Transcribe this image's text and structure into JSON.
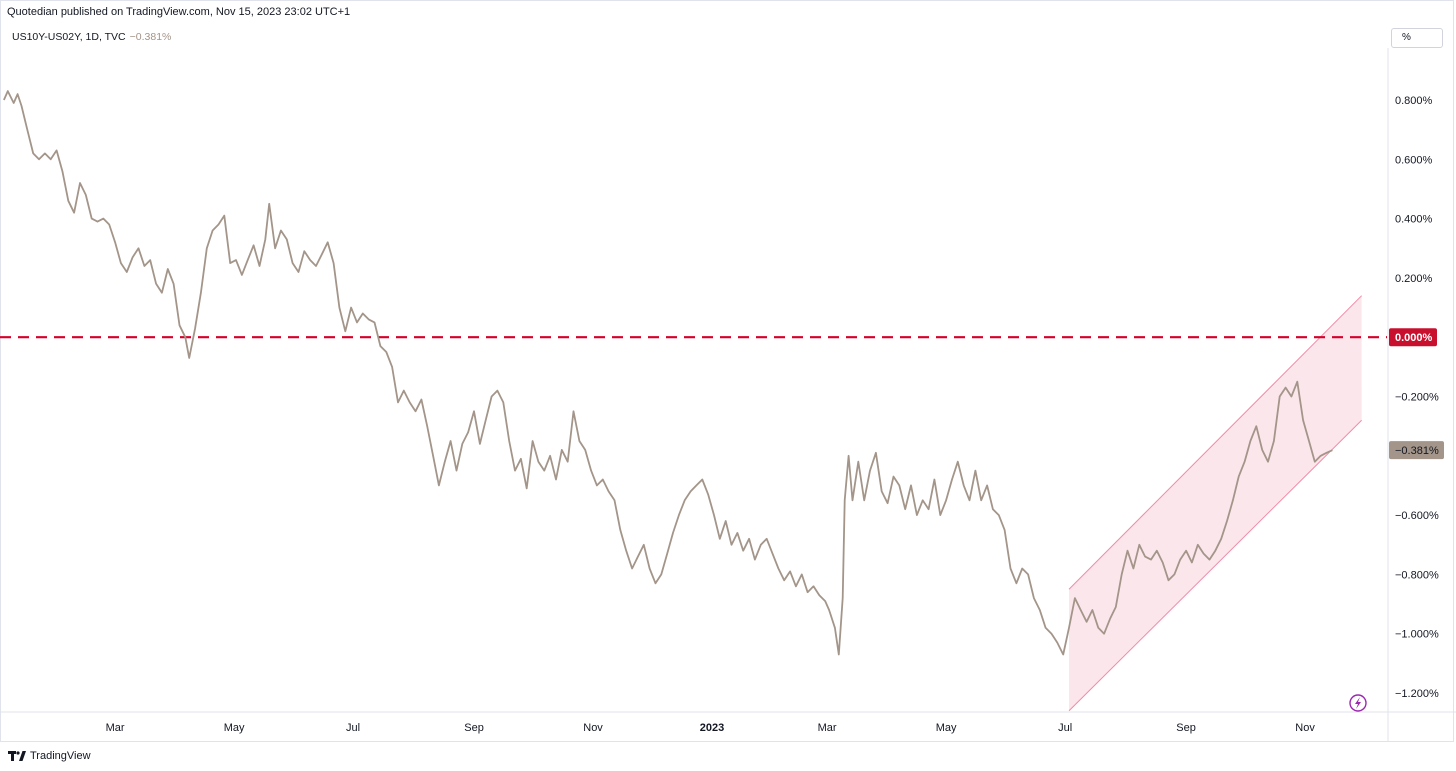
{
  "header": {
    "publisher": "Quotedian published on TradingView.com, Nov 15, 2023 23:02 UTC+1",
    "symbol": "US10Y-US02Y, 1D, TVC",
    "last_value": "−0.381%",
    "scale_button": "%"
  },
  "footer": {
    "brand": "TradingView"
  },
  "colors": {
    "line": "#a39589",
    "zero_line": "#d6002a",
    "zero_label_bg": "#c8102e",
    "channel_fill": "#fbe6ec",
    "channel_stroke": "#f28ba8",
    "last_label_bg": "#a39589",
    "lightning": "#9c27b0"
  },
  "chart_data": {
    "type": "line",
    "title": "",
    "xlabel": "",
    "ylabel": "%",
    "ylim": [
      -1.25,
      0.9
    ],
    "x_ticks": [
      {
        "label": "Mar",
        "date": "2022-03-01",
        "bold": false
      },
      {
        "label": "May",
        "date": "2022-05-01",
        "bold": false
      },
      {
        "label": "Jul",
        "date": "2022-07-01",
        "bold": false
      },
      {
        "label": "Sep",
        "date": "2022-09-01",
        "bold": false
      },
      {
        "label": "Nov",
        "date": "2022-11-01",
        "bold": false
      },
      {
        "label": "2023",
        "date": "2023-01-01",
        "bold": true
      },
      {
        "label": "Mar",
        "date": "2023-03-01",
        "bold": false
      },
      {
        "label": "May",
        "date": "2023-05-01",
        "bold": false
      },
      {
        "label": "Jul",
        "date": "2023-07-01",
        "bold": false
      },
      {
        "label": "Sep",
        "date": "2023-09-01",
        "bold": false
      },
      {
        "label": "Nov",
        "date": "2023-11-01",
        "bold": false
      }
    ],
    "y_ticks": [
      {
        "label": "0.800%",
        "value": 0.8
      },
      {
        "label": "0.600%",
        "value": 0.6
      },
      {
        "label": "0.400%",
        "value": 0.4
      },
      {
        "label": "0.200%",
        "value": 0.2
      },
      {
        "label": "−0.200%",
        "value": -0.2
      },
      {
        "label": "−0.600%",
        "value": -0.6
      },
      {
        "label": "−0.800%",
        "value": -0.8
      },
      {
        "label": "−1.000%",
        "value": -1.0
      },
      {
        "label": "−1.200%",
        "value": -1.2
      }
    ],
    "zero_label": "0.000%",
    "last_label": "−0.381%",
    "last_value": -0.381,
    "series": [
      {
        "points": [
          [
            "2022-01-03",
            0.8
          ],
          [
            "2022-01-05",
            0.83
          ],
          [
            "2022-01-08",
            0.79
          ],
          [
            "2022-01-10",
            0.82
          ],
          [
            "2022-01-12",
            0.78
          ],
          [
            "2022-01-15",
            0.7
          ],
          [
            "2022-01-18",
            0.62
          ],
          [
            "2022-01-21",
            0.6
          ],
          [
            "2022-01-24",
            0.62
          ],
          [
            "2022-01-27",
            0.6
          ],
          [
            "2022-01-30",
            0.63
          ],
          [
            "2022-02-02",
            0.56
          ],
          [
            "2022-02-05",
            0.46
          ],
          [
            "2022-02-08",
            0.42
          ],
          [
            "2022-02-11",
            0.52
          ],
          [
            "2022-02-14",
            0.48
          ],
          [
            "2022-02-17",
            0.4
          ],
          [
            "2022-02-20",
            0.39
          ],
          [
            "2022-02-23",
            0.4
          ],
          [
            "2022-02-26",
            0.38
          ],
          [
            "2022-03-01",
            0.32
          ],
          [
            "2022-03-04",
            0.25
          ],
          [
            "2022-03-07",
            0.22
          ],
          [
            "2022-03-10",
            0.27
          ],
          [
            "2022-03-13",
            0.3
          ],
          [
            "2022-03-16",
            0.24
          ],
          [
            "2022-03-19",
            0.26
          ],
          [
            "2022-03-22",
            0.18
          ],
          [
            "2022-03-25",
            0.15
          ],
          [
            "2022-03-28",
            0.23
          ],
          [
            "2022-03-31",
            0.18
          ],
          [
            "2022-04-03",
            0.04
          ],
          [
            "2022-04-06",
            0.0
          ],
          [
            "2022-04-08",
            -0.07
          ],
          [
            "2022-04-11",
            0.03
          ],
          [
            "2022-04-14",
            0.15
          ],
          [
            "2022-04-17",
            0.3
          ],
          [
            "2022-04-20",
            0.36
          ],
          [
            "2022-04-23",
            0.38
          ],
          [
            "2022-04-26",
            0.41
          ],
          [
            "2022-04-29",
            0.25
          ],
          [
            "2022-05-02",
            0.26
          ],
          [
            "2022-05-05",
            0.21
          ],
          [
            "2022-05-08",
            0.26
          ],
          [
            "2022-05-11",
            0.31
          ],
          [
            "2022-05-14",
            0.24
          ],
          [
            "2022-05-17",
            0.33
          ],
          [
            "2022-05-19",
            0.45
          ],
          [
            "2022-05-22",
            0.3
          ],
          [
            "2022-05-25",
            0.36
          ],
          [
            "2022-05-28",
            0.33
          ],
          [
            "2022-05-31",
            0.25
          ],
          [
            "2022-06-03",
            0.22
          ],
          [
            "2022-06-06",
            0.29
          ],
          [
            "2022-06-09",
            0.26
          ],
          [
            "2022-06-12",
            0.24
          ],
          [
            "2022-06-15",
            0.28
          ],
          [
            "2022-06-18",
            0.32
          ],
          [
            "2022-06-21",
            0.25
          ],
          [
            "2022-06-24",
            0.1
          ],
          [
            "2022-06-27",
            0.02
          ],
          [
            "2022-06-30",
            0.1
          ],
          [
            "2022-07-03",
            0.05
          ],
          [
            "2022-07-06",
            0.08
          ],
          [
            "2022-07-09",
            0.06
          ],
          [
            "2022-07-12",
            0.05
          ],
          [
            "2022-07-15",
            -0.03
          ],
          [
            "2022-07-18",
            -0.05
          ],
          [
            "2022-07-21",
            -0.1
          ],
          [
            "2022-07-24",
            -0.22
          ],
          [
            "2022-07-27",
            -0.18
          ],
          [
            "2022-07-30",
            -0.22
          ],
          [
            "2022-08-02",
            -0.25
          ],
          [
            "2022-08-05",
            -0.21
          ],
          [
            "2022-08-08",
            -0.3
          ],
          [
            "2022-08-11",
            -0.4
          ],
          [
            "2022-08-14",
            -0.5
          ],
          [
            "2022-08-17",
            -0.42
          ],
          [
            "2022-08-20",
            -0.35
          ],
          [
            "2022-08-23",
            -0.45
          ],
          [
            "2022-08-26",
            -0.36
          ],
          [
            "2022-08-29",
            -0.32
          ],
          [
            "2022-09-01",
            -0.25
          ],
          [
            "2022-09-04",
            -0.36
          ],
          [
            "2022-09-07",
            -0.28
          ],
          [
            "2022-09-10",
            -0.2
          ],
          [
            "2022-09-13",
            -0.18
          ],
          [
            "2022-09-16",
            -0.22
          ],
          [
            "2022-09-19",
            -0.35
          ],
          [
            "2022-09-22",
            -0.45
          ],
          [
            "2022-09-25",
            -0.41
          ],
          [
            "2022-09-28",
            -0.51
          ],
          [
            "2022-10-01",
            -0.35
          ],
          [
            "2022-10-04",
            -0.42
          ],
          [
            "2022-10-07",
            -0.45
          ],
          [
            "2022-10-10",
            -0.4
          ],
          [
            "2022-10-13",
            -0.48
          ],
          [
            "2022-10-16",
            -0.38
          ],
          [
            "2022-10-19",
            -0.42
          ],
          [
            "2022-10-22",
            -0.25
          ],
          [
            "2022-10-25",
            -0.35
          ],
          [
            "2022-10-28",
            -0.38
          ],
          [
            "2022-10-31",
            -0.45
          ],
          [
            "2022-11-03",
            -0.5
          ],
          [
            "2022-11-06",
            -0.48
          ],
          [
            "2022-11-09",
            -0.52
          ],
          [
            "2022-11-12",
            -0.55
          ],
          [
            "2022-11-15",
            -0.65
          ],
          [
            "2022-11-18",
            -0.72
          ],
          [
            "2022-11-21",
            -0.78
          ],
          [
            "2022-11-24",
            -0.74
          ],
          [
            "2022-11-27",
            -0.7
          ],
          [
            "2022-11-30",
            -0.78
          ],
          [
            "2022-12-03",
            -0.83
          ],
          [
            "2022-12-06",
            -0.8
          ],
          [
            "2022-12-09",
            -0.73
          ],
          [
            "2022-12-12",
            -0.66
          ],
          [
            "2022-12-15",
            -0.6
          ],
          [
            "2022-12-18",
            -0.55
          ],
          [
            "2022-12-21",
            -0.52
          ],
          [
            "2022-12-24",
            -0.5
          ],
          [
            "2022-12-27",
            -0.48
          ],
          [
            "2022-12-30",
            -0.53
          ],
          [
            "2023-01-02",
            -0.6
          ],
          [
            "2023-01-05",
            -0.68
          ],
          [
            "2023-01-08",
            -0.62
          ],
          [
            "2023-01-11",
            -0.7
          ],
          [
            "2023-01-14",
            -0.66
          ],
          [
            "2023-01-17",
            -0.72
          ],
          [
            "2023-01-20",
            -0.68
          ],
          [
            "2023-01-23",
            -0.75
          ],
          [
            "2023-01-26",
            -0.7
          ],
          [
            "2023-01-29",
            -0.68
          ],
          [
            "2023-02-01",
            -0.73
          ],
          [
            "2023-02-04",
            -0.78
          ],
          [
            "2023-02-07",
            -0.82
          ],
          [
            "2023-02-10",
            -0.79
          ],
          [
            "2023-02-13",
            -0.84
          ],
          [
            "2023-02-16",
            -0.8
          ],
          [
            "2023-02-19",
            -0.86
          ],
          [
            "2023-02-22",
            -0.84
          ],
          [
            "2023-02-25",
            -0.87
          ],
          [
            "2023-02-28",
            -0.89
          ],
          [
            "2023-03-02",
            -0.92
          ],
          [
            "2023-03-05",
            -0.98
          ],
          [
            "2023-03-07",
            -1.07
          ],
          [
            "2023-03-09",
            -0.88
          ],
          [
            "2023-03-10",
            -0.55
          ],
          [
            "2023-03-12",
            -0.4
          ],
          [
            "2023-03-14",
            -0.55
          ],
          [
            "2023-03-17",
            -0.42
          ],
          [
            "2023-03-20",
            -0.55
          ],
          [
            "2023-03-23",
            -0.45
          ],
          [
            "2023-03-26",
            -0.39
          ],
          [
            "2023-03-29",
            -0.52
          ],
          [
            "2023-04-01",
            -0.56
          ],
          [
            "2023-04-04",
            -0.47
          ],
          [
            "2023-04-07",
            -0.5
          ],
          [
            "2023-04-10",
            -0.58
          ],
          [
            "2023-04-13",
            -0.5
          ],
          [
            "2023-04-16",
            -0.6
          ],
          [
            "2023-04-19",
            -0.55
          ],
          [
            "2023-04-22",
            -0.58
          ],
          [
            "2023-04-25",
            -0.48
          ],
          [
            "2023-04-28",
            -0.6
          ],
          [
            "2023-05-01",
            -0.55
          ],
          [
            "2023-05-04",
            -0.48
          ],
          [
            "2023-05-07",
            -0.42
          ],
          [
            "2023-05-10",
            -0.5
          ],
          [
            "2023-05-13",
            -0.55
          ],
          [
            "2023-05-16",
            -0.45
          ],
          [
            "2023-05-19",
            -0.55
          ],
          [
            "2023-05-22",
            -0.5
          ],
          [
            "2023-05-25",
            -0.58
          ],
          [
            "2023-05-28",
            -0.6
          ],
          [
            "2023-05-31",
            -0.65
          ],
          [
            "2023-06-03",
            -0.78
          ],
          [
            "2023-06-06",
            -0.83
          ],
          [
            "2023-06-09",
            -0.78
          ],
          [
            "2023-06-12",
            -0.8
          ],
          [
            "2023-06-15",
            -0.88
          ],
          [
            "2023-06-18",
            -0.92
          ],
          [
            "2023-06-21",
            -0.98
          ],
          [
            "2023-06-24",
            -1.0
          ],
          [
            "2023-06-27",
            -1.03
          ],
          [
            "2023-06-30",
            -1.07
          ],
          [
            "2023-07-03",
            -0.98
          ],
          [
            "2023-07-06",
            -0.88
          ],
          [
            "2023-07-09",
            -0.92
          ],
          [
            "2023-07-12",
            -0.96
          ],
          [
            "2023-07-15",
            -0.92
          ],
          [
            "2023-07-18",
            -0.98
          ],
          [
            "2023-07-21",
            -1.0
          ],
          [
            "2023-07-24",
            -0.95
          ],
          [
            "2023-07-27",
            -0.91
          ],
          [
            "2023-07-30",
            -0.8
          ],
          [
            "2023-08-02",
            -0.72
          ],
          [
            "2023-08-05",
            -0.78
          ],
          [
            "2023-08-08",
            -0.7
          ],
          [
            "2023-08-11",
            -0.74
          ],
          [
            "2023-08-14",
            -0.75
          ],
          [
            "2023-08-17",
            -0.72
          ],
          [
            "2023-08-20",
            -0.76
          ],
          [
            "2023-08-23",
            -0.82
          ],
          [
            "2023-08-26",
            -0.8
          ],
          [
            "2023-08-29",
            -0.75
          ],
          [
            "2023-09-01",
            -0.72
          ],
          [
            "2023-09-04",
            -0.76
          ],
          [
            "2023-09-07",
            -0.7
          ],
          [
            "2023-09-10",
            -0.73
          ],
          [
            "2023-09-13",
            -0.75
          ],
          [
            "2023-09-16",
            -0.72
          ],
          [
            "2023-09-19",
            -0.68
          ],
          [
            "2023-09-22",
            -0.62
          ],
          [
            "2023-09-25",
            -0.55
          ],
          [
            "2023-09-28",
            -0.47
          ],
          [
            "2023-10-01",
            -0.42
          ],
          [
            "2023-10-04",
            -0.35
          ],
          [
            "2023-10-07",
            -0.3
          ],
          [
            "2023-10-10",
            -0.38
          ],
          [
            "2023-10-13",
            -0.42
          ],
          [
            "2023-10-16",
            -0.35
          ],
          [
            "2023-10-19",
            -0.2
          ],
          [
            "2023-10-22",
            -0.17
          ],
          [
            "2023-10-25",
            -0.2
          ],
          [
            "2023-10-28",
            -0.15
          ],
          [
            "2023-10-31",
            -0.28
          ],
          [
            "2023-11-03",
            -0.35
          ],
          [
            "2023-11-06",
            -0.42
          ],
          [
            "2023-11-09",
            -0.4
          ],
          [
            "2023-11-12",
            -0.39
          ],
          [
            "2023-11-15",
            -0.381
          ]
        ]
      }
    ],
    "channel": {
      "upper": [
        [
          "2023-07-03",
          -0.85
        ],
        [
          "2023-11-30",
          0.14
        ]
      ],
      "lower": [
        [
          "2023-07-03",
          -1.26
        ],
        [
          "2023-11-30",
          -0.28
        ]
      ]
    }
  }
}
